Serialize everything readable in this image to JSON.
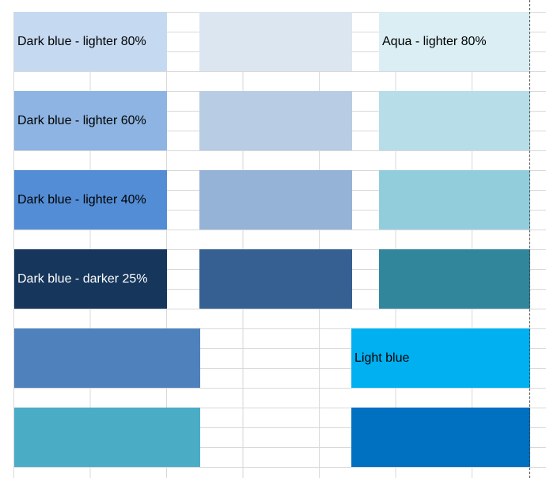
{
  "sheet": {
    "cells": [
      {
        "id": "dark-blue-lighter-80",
        "label": "Dark blue - lighter 80%",
        "fill": "#c5d9f1"
      },
      {
        "id": "blank-1",
        "label": "",
        "fill": "#dce6f1"
      },
      {
        "id": "aqua-lighter-80",
        "label": "Aqua - lighter 80%",
        "fill": "#daeef3"
      },
      {
        "id": "dark-blue-lighter-60",
        "label": "Dark blue - lighter 60%",
        "fill": "#8db4e2"
      },
      {
        "id": "blank-2",
        "label": "",
        "fill": "#b8cce4"
      },
      {
        "id": "blank-3",
        "label": "",
        "fill": "#b7dde8"
      },
      {
        "id": "dark-blue-lighter-40",
        "label": "Dark blue - lighter 40%",
        "fill": "#538dd5"
      },
      {
        "id": "blank-4",
        "label": "",
        "fill": "#95b3d7"
      },
      {
        "id": "blank-5",
        "label": "",
        "fill": "#92cddc"
      },
      {
        "id": "dark-blue-darker-25",
        "label": "Dark blue - darker 25%",
        "fill": "#16365c"
      },
      {
        "id": "blank-6",
        "label": "",
        "fill": "#366092"
      },
      {
        "id": "blank-7",
        "label": "",
        "fill": "#31869b"
      },
      {
        "id": "blank-8",
        "label": "",
        "fill": "#4f81bd"
      },
      {
        "id": "light-blue",
        "label": "Light blue",
        "fill": "#00b0f0"
      },
      {
        "id": "blank-9",
        "label": "",
        "fill": "#4bacc6"
      },
      {
        "id": "blank-10",
        "label": "",
        "fill": "#0070c0"
      }
    ]
  }
}
